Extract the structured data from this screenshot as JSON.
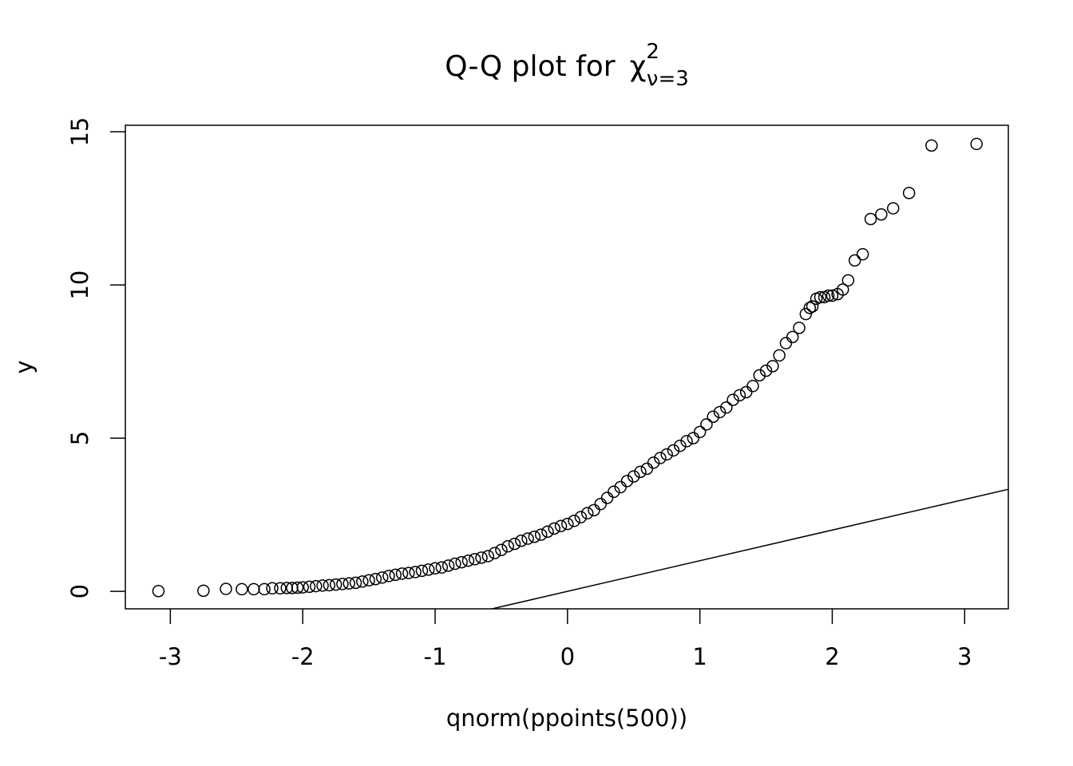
{
  "chart_data": {
    "type": "scatter",
    "title": "Q-Q plot for",
    "title_symbol": "χ",
    "title_superscript": "2",
    "title_subscript": "ν=3",
    "x_label": "qnorm(ppoints(500))",
    "y_label": "y",
    "xlim": [
      -3.34,
      3.33
    ],
    "ylim": [
      -0.57,
      15.21
    ],
    "xticks": [
      -3,
      -2,
      -1,
      0,
      1,
      2,
      3
    ],
    "yticks": [
      0,
      5,
      10,
      15
    ],
    "color": "#000000",
    "reference_line": {
      "intercept": 0,
      "slope": 1
    },
    "x": [
      -3.09,
      -2.75,
      -2.58,
      -2.46,
      -2.37,
      -2.29,
      -2.23,
      -2.17,
      -2.12,
      -2.08,
      -2.04,
      -2.0,
      -1.95,
      -1.9,
      -1.85,
      -1.8,
      -1.75,
      -1.7,
      -1.65,
      -1.6,
      -1.55,
      -1.5,
      -1.45,
      -1.4,
      -1.35,
      -1.3,
      -1.25,
      -1.2,
      -1.15,
      -1.1,
      -1.05,
      -1.0,
      -0.95,
      -0.9,
      -0.85,
      -0.8,
      -0.75,
      -0.7,
      -0.65,
      -0.6,
      -0.55,
      -0.5,
      -0.45,
      -0.4,
      -0.35,
      -0.3,
      -0.25,
      -0.2,
      -0.15,
      -0.1,
      -0.05,
      0,
      0.05,
      0.1,
      0.15,
      0.2,
      0.25,
      0.3,
      0.35,
      0.4,
      0.45,
      0.5,
      0.55,
      0.6,
      0.65,
      0.7,
      0.75,
      0.8,
      0.85,
      0.9,
      0.95,
      1.0,
      1.05,
      1.1,
      1.15,
      1.2,
      1.25,
      1.3,
      1.35,
      1.4,
      1.45,
      1.5,
      1.55,
      1.6,
      1.65,
      1.7,
      1.75,
      1.8,
      1.83,
      1.85,
      1.88,
      1.91,
      1.94,
      1.97,
      2.0,
      2.04,
      2.08,
      2.12,
      2.17,
      2.23,
      2.29,
      2.37,
      2.46,
      2.58,
      2.75,
      3.09
    ],
    "values": [
      0.01,
      0.02,
      0.08,
      0.07,
      0.07,
      0.07,
      0.1,
      0.1,
      0.11,
      0.11,
      0.12,
      0.13,
      0.15,
      0.17,
      0.19,
      0.2,
      0.22,
      0.24,
      0.26,
      0.28,
      0.32,
      0.36,
      0.4,
      0.45,
      0.5,
      0.54,
      0.58,
      0.6,
      0.63,
      0.67,
      0.71,
      0.75,
      0.78,
      0.84,
      0.9,
      0.95,
      1.0,
      1.05,
      1.1,
      1.15,
      1.25,
      1.35,
      1.47,
      1.55,
      1.65,
      1.72,
      1.78,
      1.85,
      1.95,
      2.05,
      2.13,
      2.2,
      2.3,
      2.42,
      2.55,
      2.65,
      2.85,
      3.05,
      3.25,
      3.4,
      3.6,
      3.75,
      3.9,
      4.0,
      4.2,
      4.35,
      4.47,
      4.6,
      4.75,
      4.9,
      5.0,
      5.2,
      5.45,
      5.7,
      5.85,
      6.0,
      6.25,
      6.4,
      6.5,
      6.7,
      7.05,
      7.2,
      7.35,
      7.7,
      8.1,
      8.3,
      8.6,
      9.05,
      9.25,
      9.3,
      9.55,
      9.6,
      9.6,
      9.65,
      9.65,
      9.7,
      9.85,
      10.15,
      10.8,
      11.0,
      12.15,
      12.3,
      12.5,
      13.0,
      14.55,
      14.6
    ]
  }
}
